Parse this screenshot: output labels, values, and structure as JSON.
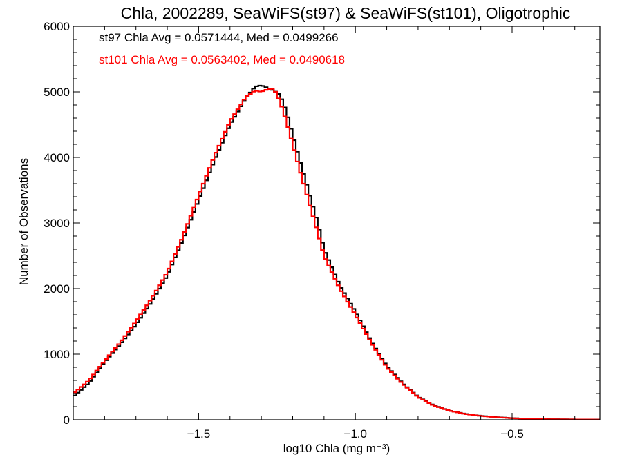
{
  "chart_data": {
    "type": "line",
    "step": true,
    "title": "Chla, 2002289, SeaWiFS(st97) & SeaWiFS(st101), Oligotrophic",
    "xlabel": "log10 Chla (mg m⁻³)",
    "ylabel": "Number of Observations",
    "xlim": [
      -1.9,
      -0.22
    ],
    "ylim": [
      0,
      6000
    ],
    "xticks": [
      -1.5,
      -1.0,
      -0.5
    ],
    "xtick_labels": [
      "−1.5",
      "−1.0",
      "−0.5"
    ],
    "yticks": [
      0,
      1000,
      2000,
      3000,
      4000,
      5000,
      6000
    ],
    "ytick_labels": [
      "0",
      "1000",
      "2000",
      "3000",
      "4000",
      "5000",
      "6000"
    ],
    "grid": false,
    "annotations": [
      {
        "text": "st97 Chla Avg = 0.0571444, Med = 0.0499266",
        "color": "#000000"
      },
      {
        "text": "st101 Chla Avg = 0.0563402, Med = 0.0490618",
        "color": "#ff0000"
      }
    ],
    "series": [
      {
        "color": "#000000",
        "x": [
          -1.9,
          -1.85,
          -1.8,
          -1.75,
          -1.7,
          -1.65,
          -1.6,
          -1.55,
          -1.5,
          -1.45,
          -1.4,
          -1.35,
          -1.32,
          -1.3,
          -1.28,
          -1.26,
          -1.24,
          -1.22,
          -1.2,
          -1.18,
          -1.15,
          -1.12,
          -1.1,
          -1.05,
          -1.0,
          -0.95,
          -0.9,
          -0.85,
          -0.8,
          -0.75,
          -0.7,
          -0.65,
          -0.6,
          -0.55,
          -0.5,
          -0.45,
          -0.4,
          -0.3,
          -0.22
        ],
        "y": [
          350,
          560,
          880,
          1150,
          1450,
          1800,
          2200,
          2750,
          3350,
          3950,
          4500,
          4900,
          5080,
          5100,
          5060,
          5020,
          4950,
          4700,
          4350,
          4000,
          3500,
          3000,
          2600,
          2050,
          1650,
          1200,
          820,
          560,
          350,
          220,
          140,
          90,
          60,
          40,
          25,
          15,
          10,
          5,
          3
        ]
      },
      {
        "color": "#ff0000",
        "x": [
          -1.9,
          -1.85,
          -1.8,
          -1.75,
          -1.7,
          -1.65,
          -1.6,
          -1.55,
          -1.5,
          -1.45,
          -1.4,
          -1.35,
          -1.32,
          -1.3,
          -1.28,
          -1.26,
          -1.24,
          -1.22,
          -1.2,
          -1.18,
          -1.15,
          -1.12,
          -1.1,
          -1.05,
          -1.0,
          -0.95,
          -0.9,
          -0.85,
          -0.8,
          -0.75,
          -0.7,
          -0.65,
          -0.6,
          -0.55,
          -0.5,
          -0.45,
          -0.4,
          -0.3,
          -0.22
        ],
        "y": [
          400,
          600,
          900,
          1180,
          1500,
          1850,
          2250,
          2800,
          3420,
          4020,
          4550,
          4920,
          5020,
          5000,
          5040,
          5050,
          4850,
          4550,
          4200,
          3850,
          3350,
          2850,
          2500,
          2000,
          1600,
          1180,
          800,
          550,
          345,
          215,
          138,
          88,
          58,
          38,
          24,
          14,
          9,
          5,
          3
        ]
      }
    ]
  }
}
